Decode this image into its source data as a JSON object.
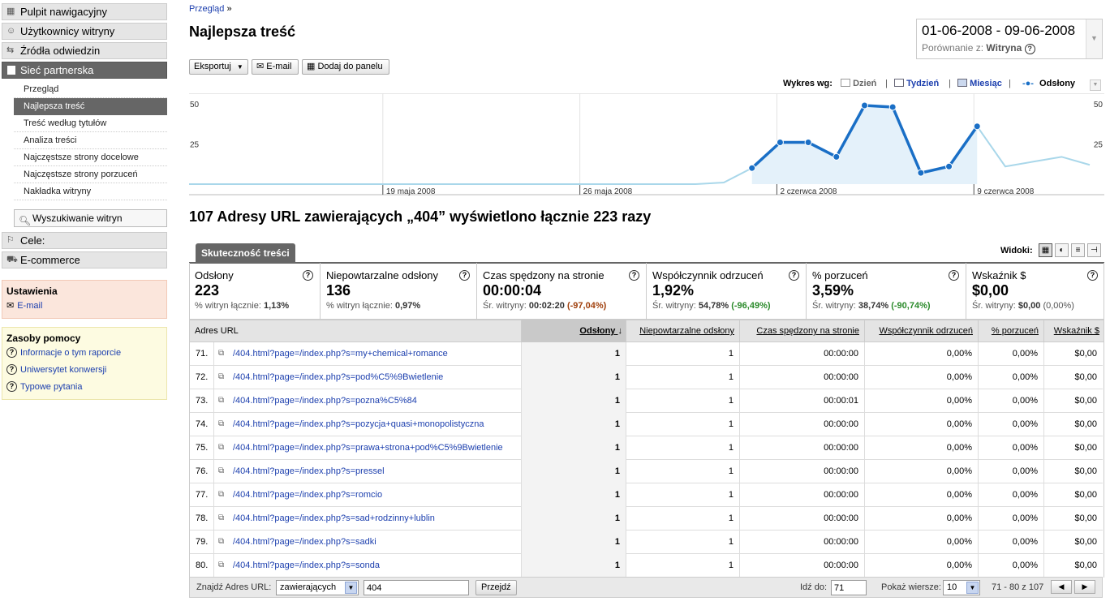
{
  "sidebar": {
    "nav": [
      {
        "label": "Pulpit nawigacyjny",
        "icon": "dashboard-icon"
      },
      {
        "label": "Użytkownicy witryny",
        "icon": "user-icon"
      },
      {
        "label": "Źródła odwiedzin",
        "icon": "traffic-icon"
      },
      {
        "label": "Sieć partnerska",
        "icon": "page-icon"
      }
    ],
    "sub": [
      "Przegląd",
      "Najlepsza treść",
      "Treść według tytułów",
      "Analiza treści",
      "Najczęstsze strony docelowe",
      "Najczęstsze strony porzuceń",
      "Nakładka witryny"
    ],
    "site_search": "Wyszukiwanie witryn",
    "goals": "Cele:",
    "ecommerce": "E-commerce",
    "settings": {
      "title": "Ustawienia",
      "email": "E-mail"
    },
    "help": {
      "title": "Zasoby pomocy",
      "links": [
        "Informacje o tym raporcie",
        "Uniwersytet konwersji",
        "Typowe pytania"
      ]
    }
  },
  "header": {
    "breadcrumb": "Przegląd",
    "breadcrumb_sep": "»",
    "title": "Najlepsza treść",
    "date_range": "01-06-2008 - 09-06-2008",
    "compare_label": "Porównanie z:",
    "compare_value": "Witryna"
  },
  "toolbar": {
    "export": "Eksportuj",
    "email": "E-mail",
    "add_dashboard": "Dodaj do panelu"
  },
  "graph_by": {
    "label": "Wykres wg:",
    "day": "Dzień",
    "week": "Tydzień",
    "month": "Miesiąc",
    "series": "Odsłony",
    "sep": "|"
  },
  "chart_data": {
    "type": "area",
    "series": [
      {
        "name": "Odsłony",
        "highlight_range": [
          20,
          28
        ],
        "values": [
          0,
          0,
          0,
          0,
          0,
          0,
          0,
          0,
          0,
          0,
          0,
          0,
          0,
          0,
          0,
          0,
          0,
          0,
          0,
          1,
          10,
          26,
          26,
          17,
          49,
          48,
          7,
          11,
          36,
          11,
          14,
          17,
          12
        ]
      }
    ],
    "x_tick_labels": [
      "19 maja 2008",
      "26 maja 2008",
      "2 czerwca 2008",
      "9 czerwca 2008"
    ],
    "y_tick_labels": [
      "50",
      "25"
    ],
    "ylim": [
      0,
      50
    ],
    "colors": {
      "highlight_line": "#1a6fc6",
      "base_line": "#a9d7ea",
      "fill": "#e4f1fa"
    }
  },
  "summary": "107 Adresy URL zawierających „404” wyświetlono łącznie 223 razy",
  "tab": "Skuteczność treści",
  "views_label": "Widoki:",
  "metrics": [
    {
      "title": "Odsłony",
      "value": "223",
      "sub_label": "% witryn łącznie:",
      "sub_value": "1,13%",
      "delta": ""
    },
    {
      "title": "Niepowtarzalne odsłony",
      "value": "136",
      "sub_label": "% witryn łącznie:",
      "sub_value": "0,97%",
      "delta": ""
    },
    {
      "title": "Czas spędzony na stronie",
      "value": "00:00:04",
      "sub_label": "Śr. witryny:",
      "sub_value": "00:02:20",
      "delta": "(-97,04%)"
    },
    {
      "title": "Współczynnik odrzuceń",
      "value": "1,92%",
      "sub_label": "Śr. witryny:",
      "sub_value": "54,78%",
      "delta": "(-96,49%)"
    },
    {
      "title": "% porzuceń",
      "value": "3,59%",
      "sub_label": "Śr. witryny:",
      "sub_value": "38,74%",
      "delta": "(-90,74%)"
    },
    {
      "title": "Wskaźnik $",
      "value": "$0,00",
      "sub_label": "Śr. witryny:",
      "sub_value": "$0,00",
      "delta": "(0,00%)"
    }
  ],
  "table": {
    "headers": [
      "Adres URL",
      "Odsłony",
      "Niepowtarzalne odsłony",
      "Czas spędzony na stronie",
      "Współczynnik odrzuceń",
      "% porzuceń",
      "Wskaźnik $"
    ],
    "rows": [
      {
        "n": "71.",
        "url": "/404.html?page=/index.php?s=my+chemical+romance",
        "pv": "1",
        "upv": "1",
        "time": "00:00:00",
        "bounce": "0,00%",
        "exit": "0,00%",
        "idx": "$0,00"
      },
      {
        "n": "72.",
        "url": "/404.html?page=/index.php?s=pod%C5%9Bwietlenie",
        "pv": "1",
        "upv": "1",
        "time": "00:00:00",
        "bounce": "0,00%",
        "exit": "0,00%",
        "idx": "$0,00"
      },
      {
        "n": "73.",
        "url": "/404.html?page=/index.php?s=pozna%C5%84",
        "pv": "1",
        "upv": "1",
        "time": "00:00:01",
        "bounce": "0,00%",
        "exit": "0,00%",
        "idx": "$0,00"
      },
      {
        "n": "74.",
        "url": "/404.html?page=/index.php?s=pozycja+quasi+monopolistyczna",
        "pv": "1",
        "upv": "1",
        "time": "00:00:00",
        "bounce": "0,00%",
        "exit": "0,00%",
        "idx": "$0,00"
      },
      {
        "n": "75.",
        "url": "/404.html?page=/index.php?s=prawa+strona+pod%C5%9Bwietlenie",
        "pv": "1",
        "upv": "1",
        "time": "00:00:00",
        "bounce": "0,00%",
        "exit": "0,00%",
        "idx": "$0,00"
      },
      {
        "n": "76.",
        "url": "/404.html?page=/index.php?s=pressel",
        "pv": "1",
        "upv": "1",
        "time": "00:00:00",
        "bounce": "0,00%",
        "exit": "0,00%",
        "idx": "$0,00"
      },
      {
        "n": "77.",
        "url": "/404.html?page=/index.php?s=romcio",
        "pv": "1",
        "upv": "1",
        "time": "00:00:00",
        "bounce": "0,00%",
        "exit": "0,00%",
        "idx": "$0,00"
      },
      {
        "n": "78.",
        "url": "/404.html?page=/index.php?s=sad+rodzinny+lublin",
        "pv": "1",
        "upv": "1",
        "time": "00:00:00",
        "bounce": "0,00%",
        "exit": "0,00%",
        "idx": "$0,00"
      },
      {
        "n": "79.",
        "url": "/404.html?page=/index.php?s=sadki",
        "pv": "1",
        "upv": "1",
        "time": "00:00:00",
        "bounce": "0,00%",
        "exit": "0,00%",
        "idx": "$0,00"
      },
      {
        "n": "80.",
        "url": "/404.html?page=/index.php?s=sonda",
        "pv": "1",
        "upv": "1",
        "time": "00:00:00",
        "bounce": "0,00%",
        "exit": "0,00%",
        "idx": "$0,00"
      }
    ]
  },
  "footer": {
    "find_label": "Znajdź Adres URL:",
    "match": "zawierających",
    "query": "404",
    "find_button": "Przejdź",
    "goto_label": "Idź do:",
    "goto_value": "71",
    "rows_label": "Pokaż wiersze:",
    "rows_value": "10",
    "range": "71 - 80 z 107"
  }
}
